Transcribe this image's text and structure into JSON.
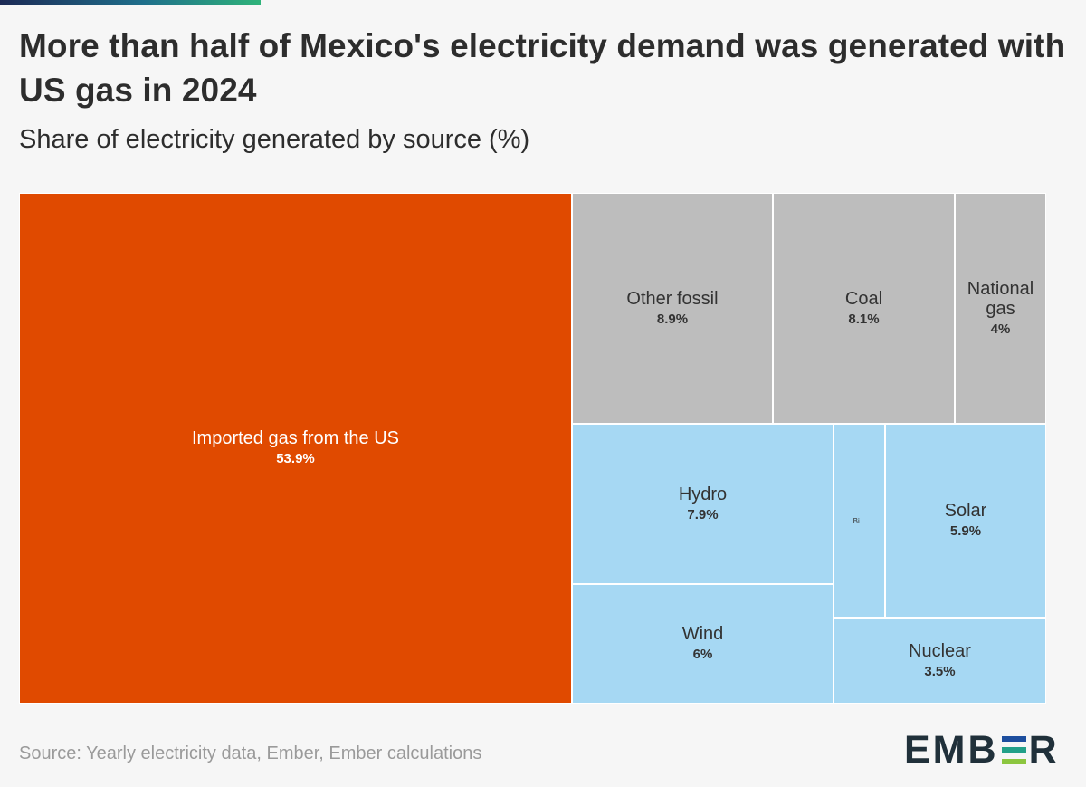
{
  "header": {
    "title": "More than half of Mexico's electricity demand was generated with US gas in 2024",
    "subtitle": "Share of electricity generated by source (%)"
  },
  "footer": {
    "source": "Source: Yearly electricity data, Ember, Ember calculations",
    "logo_left": "EMB",
    "logo_right": "R",
    "logo_stripe_colors": [
      "#1d4e9e",
      "#22a089",
      "#8cc63f"
    ]
  },
  "colors": {
    "imported_gas": "#e04a00",
    "fossil": "#bdbdbd",
    "clean": "#a6d8f3",
    "background": "#f6f6f6"
  },
  "chart_data": {
    "type": "treemap",
    "title": "More than half of Mexico's electricity demand was generated with US gas in 2024",
    "subtitle": "Share of electricity generated by source (%)",
    "unit": "%",
    "items": [
      {
        "key": "import",
        "label": "Imported gas from the US",
        "value": 53.9,
        "display": "53.9%",
        "group": "imported"
      },
      {
        "key": "otherfossil",
        "label": "Other fossil",
        "value": 8.9,
        "display": "8.9%",
        "group": "fossil"
      },
      {
        "key": "coal",
        "label": "Coal",
        "value": 8.1,
        "display": "8.1%",
        "group": "fossil"
      },
      {
        "key": "natgas",
        "label": "National gas",
        "value": 4.0,
        "display": "4%",
        "group": "fossil"
      },
      {
        "key": "hydro",
        "label": "Hydro",
        "value": 7.9,
        "display": "7.9%",
        "group": "clean"
      },
      {
        "key": "bio",
        "label": "Bi...",
        "value": 2.5,
        "display": "",
        "group": "clean"
      },
      {
        "key": "solar",
        "label": "Solar",
        "value": 5.9,
        "display": "5.9%",
        "group": "clean"
      },
      {
        "key": "wind",
        "label": "Wind",
        "value": 6.0,
        "display": "6%",
        "group": "clean"
      },
      {
        "key": "nuclear",
        "label": "Nuclear",
        "value": 3.5,
        "display": "3.5%",
        "group": "clean"
      }
    ]
  }
}
